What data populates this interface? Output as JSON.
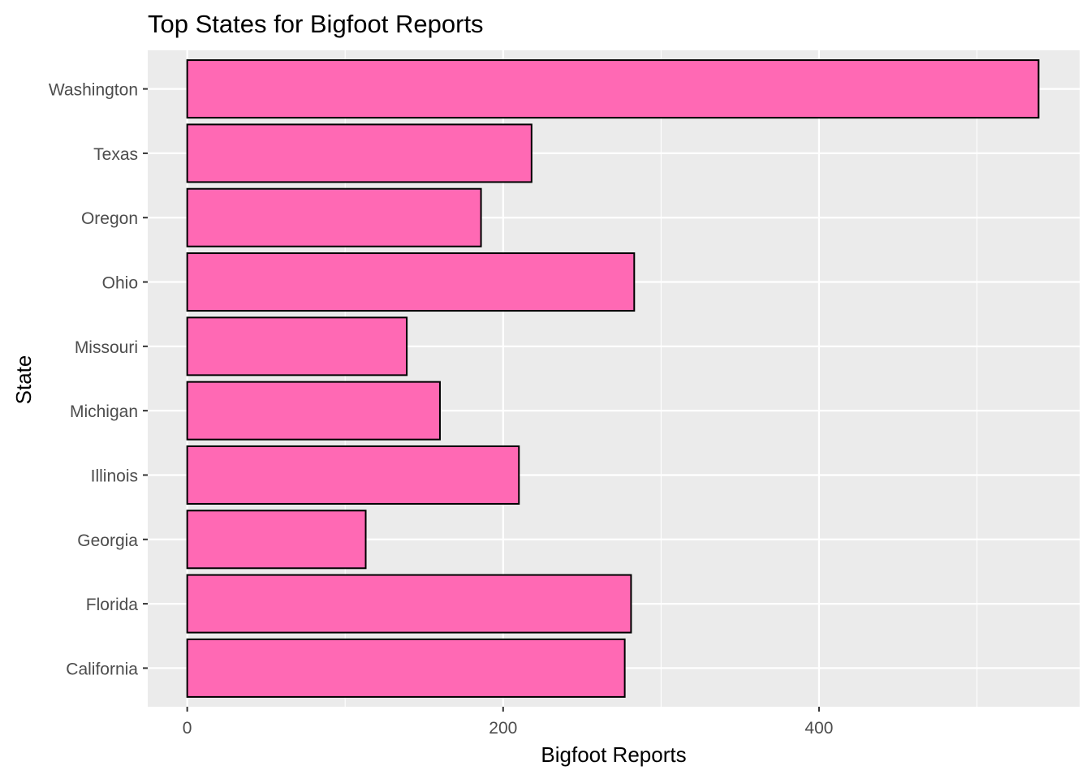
{
  "chart_data": {
    "type": "bar",
    "orientation": "horizontal",
    "title": "Top States for Bigfoot Reports",
    "xlabel": "Bigfoot Reports",
    "ylabel": "State",
    "categories": [
      "California",
      "Florida",
      "Georgia",
      "Illinois",
      "Michigan",
      "Missouri",
      "Ohio",
      "Oregon",
      "Texas",
      "Washington"
    ],
    "values": [
      277,
      281,
      113,
      210,
      160,
      139,
      283,
      186,
      218,
      539
    ],
    "xlim": [
      -25,
      565
    ],
    "x_ticks": [
      0,
      200,
      400
    ],
    "x_minor_ticks": [
      100,
      300,
      500
    ],
    "grid": true,
    "legend": "none",
    "colors": {
      "bar_fill": "#ff69b4",
      "bar_outline": "#000000",
      "panel_background": "#ebebeb",
      "grid_line": "#ffffff",
      "tick_label": "#4d4d4d",
      "text": "#000000"
    }
  }
}
